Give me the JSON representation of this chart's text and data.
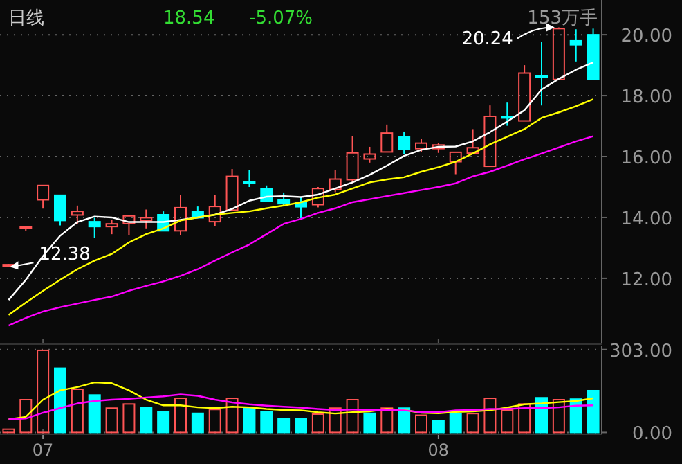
{
  "chart_data": [
    {
      "type": "candlestick",
      "title": "日线",
      "categories": [
        null,
        null,
        "07",
        null,
        null,
        null,
        null,
        null,
        null,
        null,
        null,
        null,
        null,
        null,
        null,
        null,
        null,
        null,
        null,
        null,
        null,
        null,
        null,
        null,
        null,
        "08",
        null,
        null,
        null,
        null,
        null,
        null,
        null,
        null,
        null
      ],
      "ohlc": [
        [
          12.42,
          12.47,
          12.38,
          12.45
        ],
        [
          13.66,
          13.7,
          13.56,
          13.7
        ],
        [
          14.58,
          15.05,
          14.29,
          15.05
        ],
        [
          14.73,
          14.73,
          13.74,
          13.9
        ],
        [
          14.08,
          14.39,
          13.79,
          14.2
        ],
        [
          13.86,
          13.99,
          13.33,
          13.7
        ],
        [
          13.7,
          13.92,
          13.45,
          13.79
        ],
        [
          13.8,
          14.05,
          13.41,
          14.05
        ],
        [
          13.9,
          14.26,
          13.64,
          13.99
        ],
        [
          14.09,
          14.2,
          13.56,
          13.56
        ],
        [
          13.56,
          14.73,
          13.41,
          14.32
        ],
        [
          14.2,
          14.36,
          13.99,
          13.99
        ],
        [
          13.86,
          14.73,
          13.71,
          14.36
        ],
        [
          14.24,
          15.59,
          14.24,
          15.35
        ],
        [
          15.17,
          15.55,
          15.0,
          15.13
        ],
        [
          14.95,
          15.05,
          14.53,
          14.53
        ],
        [
          14.59,
          14.82,
          14.39,
          14.45
        ],
        [
          14.5,
          14.68,
          13.97,
          14.35
        ],
        [
          14.42,
          15.0,
          14.33,
          14.95
        ],
        [
          14.92,
          15.55,
          14.83,
          15.26
        ],
        [
          15.24,
          16.68,
          15.12,
          16.12
        ],
        [
          15.92,
          16.32,
          15.8,
          16.08
        ],
        [
          16.15,
          17.05,
          16.15,
          16.77
        ],
        [
          16.64,
          16.82,
          16.09,
          16.23
        ],
        [
          16.26,
          16.59,
          16.14,
          16.44
        ],
        [
          16.26,
          16.44,
          16.12,
          16.38
        ],
        [
          15.83,
          16.14,
          15.42,
          16.14
        ],
        [
          16.11,
          16.9,
          16.11,
          16.29
        ],
        [
          15.68,
          17.68,
          15.68,
          17.32
        ],
        [
          17.31,
          17.77,
          17.01,
          17.27
        ],
        [
          17.17,
          19.0,
          17.17,
          18.74
        ],
        [
          18.65,
          19.77,
          17.68,
          18.6
        ],
        [
          18.53,
          20.24,
          18.53,
          20.2
        ],
        [
          19.8,
          20.18,
          19.12,
          19.67
        ],
        [
          20.0,
          20.2,
          18.53,
          18.54
        ]
      ],
      "colors": [
        "#ff5555",
        "#ff5555",
        "#ff5555",
        "#00ffff",
        "#ff5555",
        "#00ffff",
        "#ff5555",
        "#ff5555",
        "#ff5555",
        "#00ffff",
        "#ff5555",
        "#00ffff",
        "#ff5555",
        "#ff5555",
        "#00ffff",
        "#00ffff",
        "#00ffff",
        "#00ffff",
        "#ff5555",
        "#ff5555",
        "#ff5555",
        "#ff5555",
        "#ff5555",
        "#00ffff",
        "#ff5555",
        "#ff5555",
        "#ff5555",
        "#ff5555",
        "#ff5555",
        "#00ffff",
        "#ff5555",
        "#00ffff",
        "#ff5555",
        "#00ffff",
        "#00ffff"
      ],
      "series": [
        {
          "type": "line",
          "color": "#ffffff",
          "values": [
            11.29,
            11.95,
            12.73,
            13.4,
            13.85,
            14.03,
            14.0,
            13.85,
            13.85,
            13.85,
            13.92,
            14.0,
            14.09,
            14.28,
            14.55,
            14.68,
            14.7,
            14.67,
            14.75,
            14.95,
            15.15,
            15.4,
            15.7,
            16.02,
            16.22,
            16.32,
            16.33,
            16.5,
            16.8,
            17.15,
            17.52,
            18.2,
            18.55,
            18.85,
            19.09
          ]
        },
        {
          "type": "line",
          "color": "#ffff00",
          "values": [
            10.8,
            11.2,
            11.59,
            11.95,
            12.3,
            12.58,
            12.8,
            13.18,
            13.45,
            13.64,
            13.9,
            14.0,
            14.09,
            14.15,
            14.2,
            14.3,
            14.39,
            14.5,
            14.65,
            14.75,
            14.95,
            15.15,
            15.25,
            15.32,
            15.5,
            15.65,
            15.83,
            16.1,
            16.4,
            16.65,
            16.9,
            17.27,
            17.45,
            17.65,
            17.88
          ]
        },
        {
          "type": "line",
          "color": "#ff00ff",
          "values": [
            10.45,
            10.7,
            10.91,
            11.05,
            11.17,
            11.29,
            11.4,
            11.59,
            11.75,
            11.9,
            12.08,
            12.3,
            12.58,
            12.85,
            13.11,
            13.45,
            13.79,
            13.95,
            14.15,
            14.3,
            14.5,
            14.6,
            14.7,
            14.8,
            14.9,
            15.0,
            15.12,
            15.35,
            15.5,
            15.7,
            15.91,
            16.1,
            16.3,
            16.5,
            16.67
          ]
        }
      ],
      "ylim": [
        9.86,
        21.14
      ],
      "yticks": [
        {
          "value": 12,
          "label": "12.00"
        },
        {
          "value": 14,
          "label": "14.00"
        },
        {
          "value": 16,
          "label": "16.00"
        },
        {
          "value": 18,
          "label": "18.00"
        },
        {
          "value": 20,
          "label": "20.00"
        }
      ],
      "grid": "y",
      "tick_labels": "y",
      "annotations": [
        "20.24",
        "12.38",
        "18.54",
        "-5.07%",
        "153万手"
      ]
    },
    {
      "type": "bar",
      "categories": [
        null,
        null,
        "07",
        null,
        null,
        null,
        null,
        null,
        null,
        null,
        null,
        null,
        null,
        null,
        null,
        null,
        null,
        null,
        null,
        null,
        null,
        null,
        null,
        null,
        null,
        "08",
        null,
        null,
        null,
        null,
        null,
        null,
        null,
        null,
        null
      ],
      "series": [
        {
          "type": "bar",
          "values": [
            12,
            120,
            300,
            235,
            158,
            137,
            89,
            104,
            91,
            75,
            125,
            70,
            84,
            125,
            91,
            75,
            50,
            50,
            67,
            89,
            120,
            70,
            89,
            89,
            63,
            43,
            69,
            69,
            125,
            82,
            104,
            127,
            120,
            122,
            153
          ],
          "colors": [
            "#ff5555",
            "#ff5555",
            "#ff5555",
            "#00ffff",
            "#ff5555",
            "#00ffff",
            "#ff5555",
            "#ff5555",
            "#00ffff",
            "#00ffff",
            "#ff5555",
            "#00ffff",
            "#ff5555",
            "#ff5555",
            "#00ffff",
            "#00ffff",
            "#00ffff",
            "#00ffff",
            "#ff5555",
            "#ff5555",
            "#ff5555",
            "#00ffff",
            "#ff5555",
            "#00ffff",
            "#ff5555",
            "#00ffff",
            "#00ffff",
            "#ff5555",
            "#ff5555",
            "#ff5555",
            "#ff5555",
            "#00ffff",
            "#ff5555",
            "#00ffff",
            "#00ffff"
          ]
        },
        {
          "type": "line",
          "color": "#ffff00",
          "values": [
            48,
            57,
            120,
            154,
            166,
            183,
            180,
            154,
            120,
            99,
            99,
            92,
            89,
            94,
            92,
            86,
            82,
            81,
            74,
            69,
            74,
            77,
            86,
            82,
            72,
            70,
            75,
            77,
            81,
            91,
            103,
            106,
            111,
            115,
            125
          ]
        },
        {
          "type": "line",
          "color": "#ff00ff",
          "values": [
            48,
            51,
            72,
            89,
            106,
            115,
            120,
            123,
            128,
            132,
            139,
            134,
            120,
            110,
            103,
            98,
            94,
            91,
            86,
            82,
            84,
            82,
            82,
            81,
            74,
            74,
            81,
            82,
            86,
            86,
            89,
            89,
            92,
            98,
            99
          ]
        }
      ],
      "ylim": [
        -4,
        315
      ],
      "yticks": [
        {
          "value": 0,
          "label": "0.00"
        },
        {
          "value": 303,
          "label": "303.00"
        }
      ],
      "grid": "y"
    }
  ]
}
